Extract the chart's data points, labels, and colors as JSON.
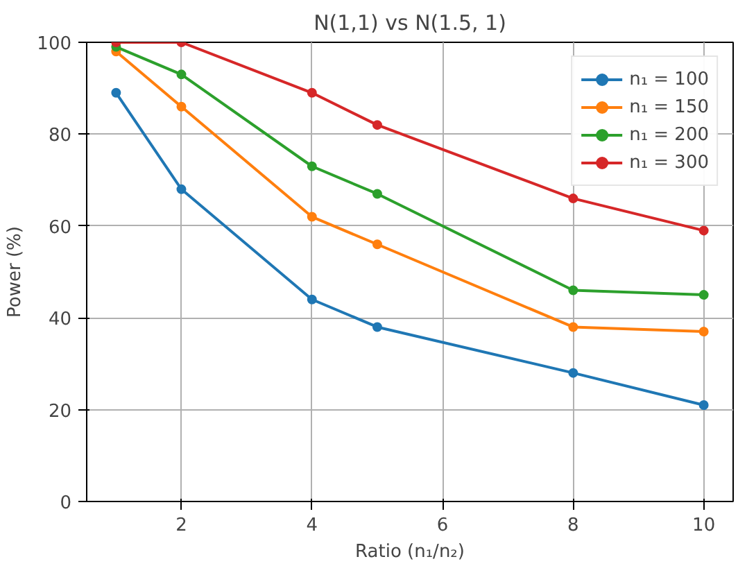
{
  "chart_data": {
    "type": "line",
    "title": "N(1,1) vs N(1.5, 1)",
    "xlabel": "Ratio (n₁/n₂)",
    "ylabel": "Power (%)",
    "x": [
      1,
      2,
      4,
      5,
      8,
      10
    ],
    "series": [
      {
        "name": "n₁ = 100",
        "color": "#1f77b4",
        "values": [
          89,
          68,
          44,
          38,
          28,
          21
        ]
      },
      {
        "name": "n₁ = 150",
        "color": "#ff7f0e",
        "values": [
          98,
          86,
          62,
          56,
          38,
          37
        ]
      },
      {
        "name": "n₁ = 200",
        "color": "#2ca02c",
        "values": [
          99,
          93,
          73,
          67,
          46,
          45
        ]
      },
      {
        "name": "n₁ = 300",
        "color": "#d62728",
        "values": [
          100,
          100,
          89,
          82,
          66,
          59
        ]
      }
    ],
    "xlim": [
      0.55,
      10.45
    ],
    "ylim": [
      0,
      100
    ],
    "xticks": [
      2,
      4,
      6,
      8,
      10
    ],
    "yticks": [
      0,
      20,
      40,
      60,
      80,
      100
    ],
    "grid": true,
    "legend": "top right",
    "marker": "circle",
    "line_style": "solid"
  }
}
